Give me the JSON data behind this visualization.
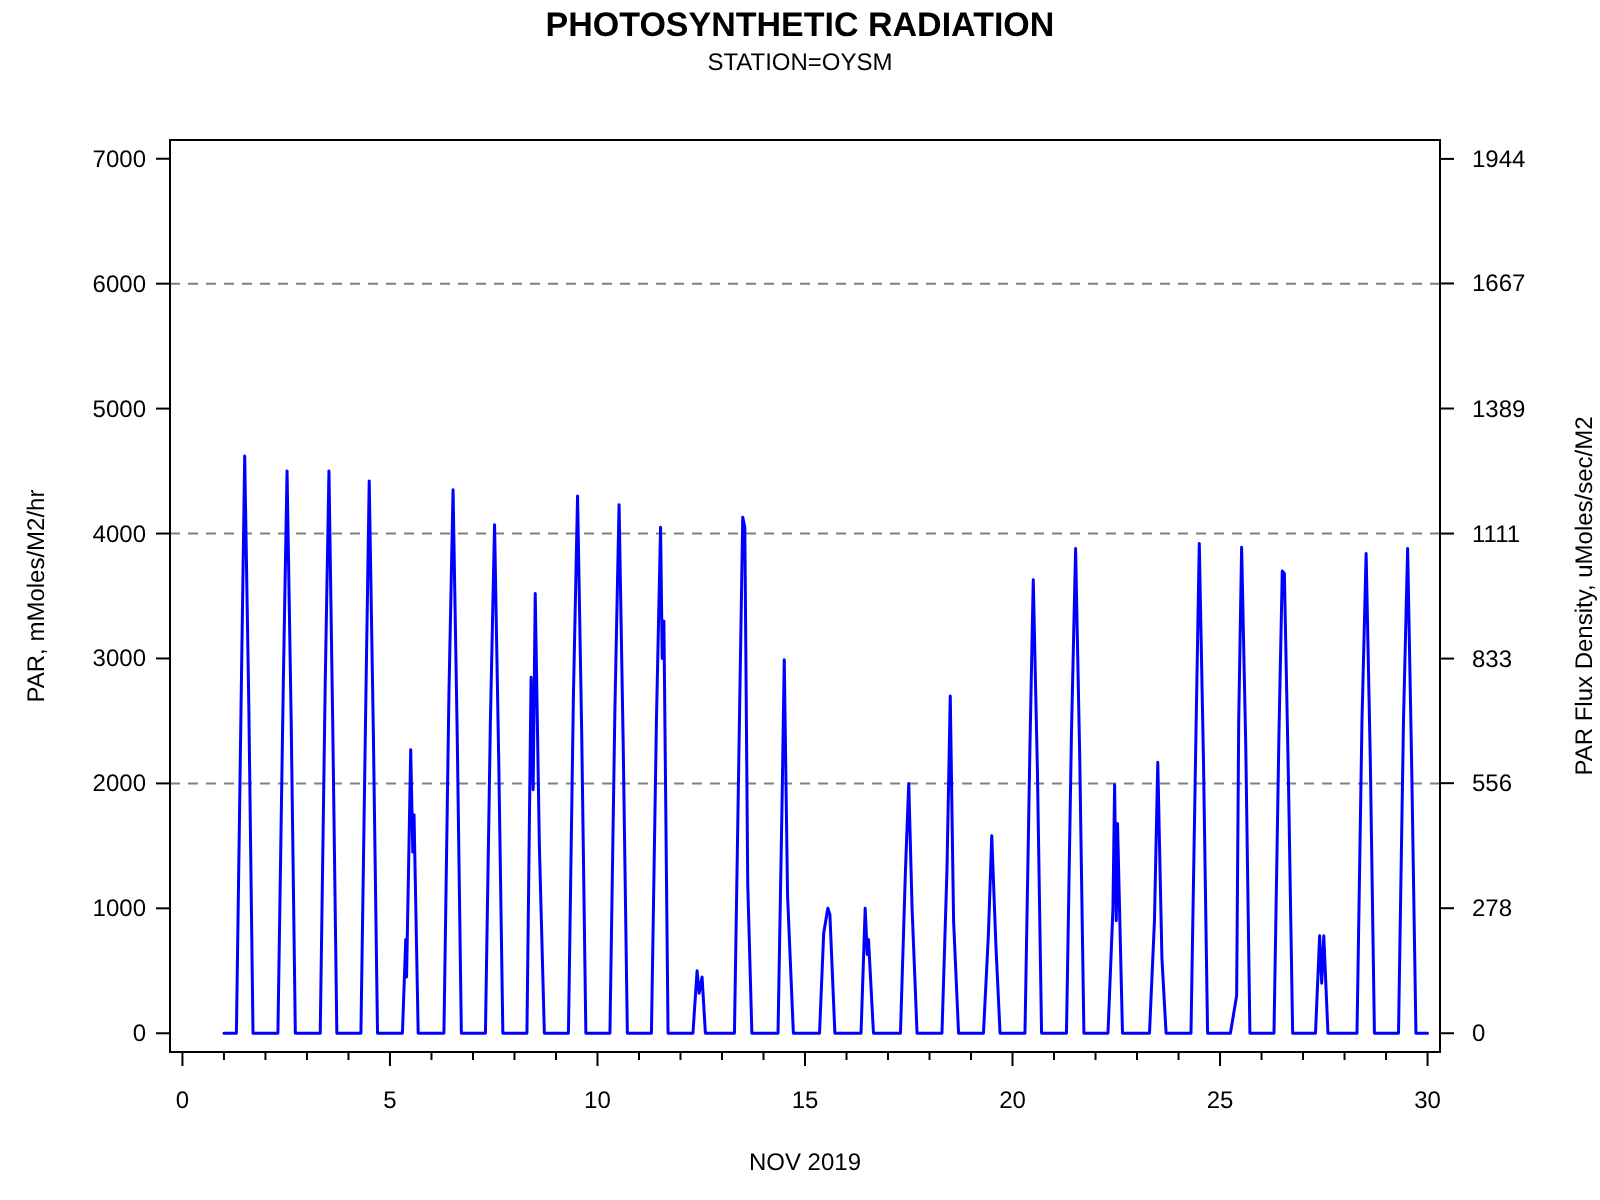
{
  "chart_data": {
    "type": "line",
    "title": "PHOTOSYNTHETIC RADIATION",
    "subtitle": "STATION=OYSM",
    "xlabel": "NOV 2019",
    "ylabel": "PAR, mMoles/M2/hr",
    "y2label": "PAR Flux Density, uMoles/sec/M2",
    "xlim": [
      -0.3,
      30.3
    ],
    "ylim": [
      -150,
      7150
    ],
    "y2lim": [
      -41.7,
      1986
    ],
    "xticks": [
      0,
      {
        "value": 1,
        "label": null
      },
      {
        "value": 2,
        "label": null
      },
      {
        "value": 3,
        "label": null
      },
      {
        "value": 4,
        "label": null
      },
      5,
      {
        "value": 6,
        "label": null
      },
      {
        "value": 7,
        "label": null
      },
      {
        "value": 8,
        "label": null
      },
      {
        "value": 9,
        "label": null
      },
      10,
      {
        "value": 11,
        "label": null
      },
      {
        "value": 12,
        "label": null
      },
      {
        "value": 13,
        "label": null
      },
      {
        "value": 14,
        "label": null
      },
      15,
      {
        "value": 16,
        "label": null
      },
      {
        "value": 17,
        "label": null
      },
      {
        "value": 18,
        "label": null
      },
      {
        "value": 19,
        "label": null
      },
      20,
      {
        "value": 21,
        "label": null
      },
      {
        "value": 22,
        "label": null
      },
      {
        "value": 23,
        "label": null
      },
      {
        "value": 24,
        "label": null
      },
      25,
      {
        "value": 26,
        "label": null
      },
      {
        "value": 27,
        "label": null
      },
      {
        "value": 28,
        "label": null
      },
      {
        "value": 29,
        "label": null
      },
      30
    ],
    "yticks": [
      0,
      1000,
      2000,
      3000,
      4000,
      5000,
      6000,
      7000
    ],
    "y2ticks": [
      0,
      278,
      556,
      833,
      1111,
      1389,
      1667,
      1944
    ],
    "ref_lines": [
      {
        "axis": "y",
        "value": 2000,
        "label": null,
        "color": "#808080",
        "line_style": "dashed"
      },
      {
        "axis": "y",
        "value": 4000,
        "label": null,
        "color": "#808080",
        "line_style": "dashed"
      },
      {
        "axis": "y",
        "value": 6000,
        "label": null,
        "color": "#808080",
        "line_style": "dashed"
      }
    ],
    "grid": false,
    "marker": "none",
    "line_style": "solid",
    "series": [
      {
        "color": "#0000ff",
        "x": [
          1.0,
          1.3,
          1.42,
          1.5,
          1.6,
          1.7,
          2.3,
          2.43,
          2.52,
          2.62,
          2.72,
          3.32,
          3.44,
          3.53,
          3.62,
          3.72,
          4.3,
          4.42,
          4.5,
          4.6,
          4.7,
          5.3,
          5.38,
          5.4,
          5.5,
          5.55,
          5.58,
          5.68,
          6.3,
          6.42,
          6.52,
          6.62,
          6.72,
          7.3,
          7.42,
          7.52,
          7.62,
          7.72,
          8.3,
          8.4,
          8.45,
          8.5,
          8.6,
          8.72,
          9.3,
          9.42,
          9.52,
          9.62,
          9.72,
          10.3,
          10.42,
          10.52,
          10.62,
          10.72,
          11.3,
          11.42,
          11.52,
          11.56,
          11.6,
          11.7,
          12.3,
          12.4,
          12.45,
          12.52,
          12.6,
          13.3,
          13.42,
          13.5,
          13.55,
          13.62,
          13.72,
          14.35,
          14.45,
          14.5,
          14.58,
          14.72,
          15.35,
          15.45,
          15.55,
          15.6,
          15.72,
          16.35,
          16.45,
          16.5,
          16.53,
          16.65,
          17.3,
          17.42,
          17.5,
          17.58,
          17.7,
          18.3,
          18.42,
          18.5,
          18.58,
          18.7,
          19.3,
          19.42,
          19.5,
          19.6,
          19.7,
          20.3,
          20.42,
          20.5,
          20.6,
          20.7,
          21.3,
          21.42,
          21.52,
          21.62,
          21.72,
          22.3,
          22.42,
          22.46,
          22.5,
          22.53,
          22.65,
          23.3,
          23.42,
          23.5,
          23.6,
          23.7,
          24.3,
          24.42,
          24.5,
          24.6,
          24.7,
          25.25,
          25.4,
          25.45,
          25.52,
          25.62,
          25.72,
          26.3,
          26.42,
          26.5,
          26.55,
          26.65,
          26.75,
          27.3,
          27.4,
          27.45,
          27.5,
          27.6,
          28.3,
          28.42,
          28.52,
          28.62,
          28.72,
          29.3,
          29.42,
          29.52,
          29.62,
          29.72,
          30.0
        ],
        "values": [
          0,
          0,
          2800,
          4620,
          2600,
          0,
          0,
          2800,
          4500,
          2500,
          0,
          0,
          2800,
          4500,
          2500,
          0,
          0,
          2700,
          4420,
          2400,
          0,
          0,
          750,
          450,
          2270,
          1450,
          1750,
          0,
          0,
          2700,
          4350,
          2400,
          0,
          0,
          2500,
          4070,
          2200,
          0,
          0,
          2850,
          1950,
          3520,
          1500,
          0,
          0,
          2700,
          4300,
          2400,
          0,
          0,
          2600,
          4230,
          2300,
          0,
          0,
          2500,
          4050,
          3000,
          3300,
          0,
          0,
          500,
          320,
          450,
          0,
          0,
          2500,
          4130,
          4050,
          1200,
          0,
          0,
          1900,
          2990,
          1100,
          0,
          0,
          800,
          1000,
          950,
          0,
          0,
          1000,
          630,
          750,
          0,
          0,
          1300,
          2000,
          1000,
          0,
          0,
          1300,
          2700,
          900,
          0,
          0,
          800,
          1580,
          700,
          0,
          0,
          2300,
          3630,
          2100,
          0,
          0,
          2400,
          3880,
          2200,
          0,
          0,
          1000,
          1990,
          900,
          1680,
          0,
          0,
          900,
          2170,
          600,
          0,
          0,
          2400,
          3920,
          2200,
          0,
          0,
          300,
          2500,
          3890,
          2300,
          0,
          0,
          2400,
          3700,
          3680,
          2000,
          0,
          0,
          780,
          400,
          780,
          0,
          0,
          2500,
          3840,
          2200,
          0,
          0,
          2500,
          3880,
          2100,
          0,
          0
        ]
      }
    ]
  }
}
